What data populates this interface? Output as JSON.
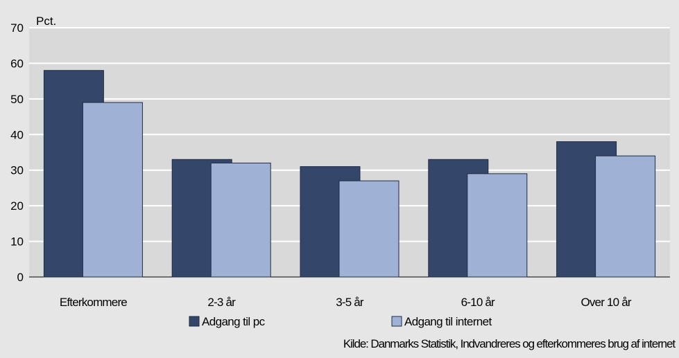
{
  "chart_data": {
    "type": "bar",
    "ylabel": "Pct.",
    "ylim": [
      0,
      70
    ],
    "yticks": [
      0,
      10,
      20,
      30,
      40,
      50,
      60,
      70
    ],
    "grid": true,
    "legend_position": "bottom",
    "categories": [
      "Efterkommere",
      "2-3 år",
      "3-5 år",
      "6-10 år",
      "Over 10 år"
    ],
    "series": [
      {
        "name": "Adgang til pc",
        "values": [
          58,
          33,
          31,
          33,
          38
        ],
        "color": "#34466a"
      },
      {
        "name": "Adgang til internet",
        "values": [
          49,
          32,
          27,
          29,
          34
        ],
        "color": "#9fb1d4"
      }
    ],
    "source": "Kilde: Danmarks Statistik, Indvandreres og efterkommeres brug af internet"
  },
  "colors": {
    "page_background": "#e6e6e6",
    "plot_background": "#d9d9d9",
    "gridline": "#ffffff"
  }
}
